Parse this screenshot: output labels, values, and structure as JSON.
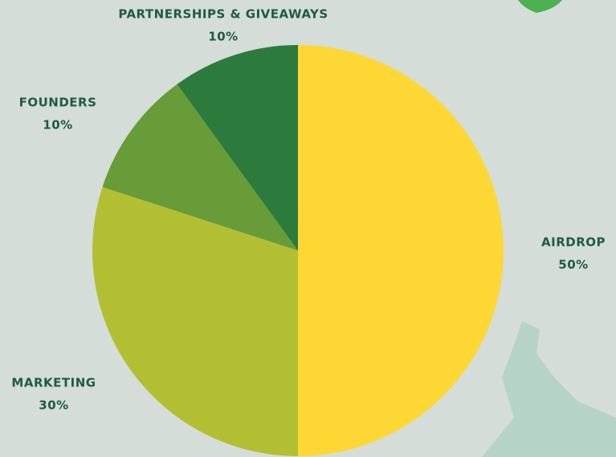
{
  "chart_data": {
    "type": "pie",
    "categories": [
      "AIRDROP",
      "MARKETING",
      "FOUNDERS",
      "PARTNERSHIPS & GIVEAWAYS"
    ],
    "values": [
      50,
      30,
      10,
      10
    ],
    "value_labels": [
      "50%",
      "30%",
      "10%",
      "10%"
    ],
    "colors": [
      "#fdd734",
      "#b3bf33",
      "#679c38",
      "#2c7b3d"
    ]
  }
}
